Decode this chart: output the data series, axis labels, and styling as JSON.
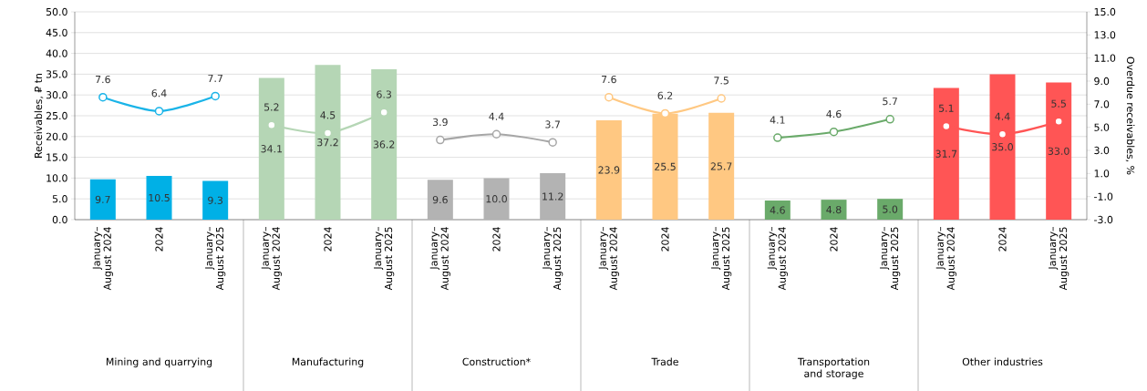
{
  "chart_data": {
    "type": "bar",
    "ylabel": "Receivables, ₽ tn",
    "y2label": "Overdue receivables, %",
    "categories": [
      "January–August 2024",
      "2024",
      "January–August 2025",
      "January–August 2024",
      "2024",
      "January–August 2025",
      "January–August 2024",
      "2024",
      "January–August 2025",
      "January–August 2024",
      "2024",
      "January–August 2025",
      "January–August 2024",
      "2024",
      "January–August 2025",
      "January–August 2024",
      "2024",
      "January–August 2025"
    ],
    "annotations": [
      "Mining and quarrying",
      "Manufacturing",
      "Construction*",
      "Trade",
      "Transportation and storage",
      "Other industries"
    ],
    "series": [
      {
        "values": [
          9.7,
          10.5,
          9.3,
          34.1,
          37.2,
          36.2,
          9.6,
          10.0,
          11.2,
          23.9,
          25.5,
          25.7,
          4.6,
          4.8,
          5.0,
          31.7,
          35.0,
          33.0
        ],
        "value_labels": [
          "9.7",
          "10.5",
          "9.3",
          "34.1",
          "37.2",
          "36.2",
          "9.6",
          "10.0",
          "11.2",
          "23.9",
          "25.5",
          "25.7",
          "4.6",
          "4.8",
          "5.0",
          "31.7",
          "35.0",
          "33.0"
        ],
        "colors": [
          "#00b0e6",
          "#00b0e6",
          "#00b0e6",
          "#b5d6b5",
          "#b5d6b5",
          "#b5d6b5",
          "#b3b3b3",
          "#b3b3b3",
          "#b3b3b3",
          "#ffc882",
          "#ffc882",
          "#ffc882",
          "#6aaa6a",
          "#6aaa6a",
          "#6aaa6a",
          "#ff5555",
          "#ff5555",
          "#ff5555"
        ]
      },
      {
        "type": "line",
        "axis": "y2",
        "color": "#1ab4e8",
        "values": [
          7.6,
          6.4,
          7.7,
          null,
          null,
          null,
          null,
          null,
          null,
          null,
          null,
          null,
          null,
          null,
          null,
          null,
          null,
          null
        ],
        "value_labels": [
          "7.6",
          "6.4",
          "7.7",
          null,
          null,
          null,
          null,
          null,
          null,
          null,
          null,
          null,
          null,
          null,
          null,
          null,
          null,
          null
        ]
      },
      {
        "type": "line",
        "axis": "y2",
        "color": "#b5d6b5",
        "values": [
          null,
          null,
          null,
          5.2,
          4.5,
          6.3,
          null,
          null,
          null,
          null,
          null,
          null,
          null,
          null,
          null,
          null,
          null,
          null
        ],
        "value_labels": [
          null,
          null,
          null,
          "5.2",
          "4.5",
          "6.3",
          null,
          null,
          null,
          null,
          null,
          null,
          null,
          null,
          null,
          null,
          null,
          null
        ]
      },
      {
        "type": "line",
        "axis": "y2",
        "color": "#a6a6a6",
        "values": [
          null,
          null,
          null,
          null,
          null,
          null,
          3.9,
          4.4,
          3.7,
          null,
          null,
          null,
          null,
          null,
          null,
          null,
          null,
          null
        ],
        "value_labels": [
          null,
          null,
          null,
          null,
          null,
          null,
          "3.9",
          "4.4",
          "3.7",
          null,
          null,
          null,
          null,
          null,
          null,
          null,
          null,
          null
        ]
      },
      {
        "type": "line",
        "axis": "y2",
        "color": "#ffc882",
        "values": [
          null,
          null,
          null,
          null,
          null,
          null,
          null,
          null,
          null,
          7.6,
          6.2,
          7.5,
          null,
          null,
          null,
          null,
          null,
          null
        ],
        "value_labels": [
          null,
          null,
          null,
          null,
          null,
          null,
          null,
          null,
          null,
          "7.6",
          "6.2",
          "7.5",
          null,
          null,
          null,
          null,
          null,
          null
        ]
      },
      {
        "type": "line",
        "axis": "y2",
        "color": "#6aaa6a",
        "values": [
          null,
          null,
          null,
          null,
          null,
          null,
          null,
          null,
          null,
          null,
          null,
          null,
          4.1,
          4.6,
          5.7,
          null,
          null,
          null
        ],
        "value_labels": [
          null,
          null,
          null,
          null,
          null,
          null,
          null,
          null,
          null,
          null,
          null,
          null,
          "4.1",
          "4.6",
          "5.7",
          null,
          null,
          null
        ]
      },
      {
        "type": "line",
        "axis": "y2",
        "color": "#ff5555",
        "values": [
          null,
          null,
          null,
          null,
          null,
          null,
          null,
          null,
          null,
          null,
          null,
          null,
          null,
          null,
          null,
          5.1,
          4.4,
          5.5
        ],
        "value_labels": [
          null,
          null,
          null,
          null,
          null,
          null,
          null,
          null,
          null,
          null,
          null,
          null,
          null,
          null,
          null,
          "5.1",
          "4.4",
          "5.5"
        ]
      }
    ],
    "ylim": [
      0,
      50
    ],
    "yticks": [
      {
        "value": 0,
        "label": "0.0"
      },
      {
        "value": 5,
        "label": "5.0"
      },
      {
        "value": 10,
        "label": "10.0"
      },
      {
        "value": 15,
        "label": "15.0"
      },
      {
        "value": 20,
        "label": "20.0"
      },
      {
        "value": 25,
        "label": "25.0"
      },
      {
        "value": 30,
        "label": "30.0"
      },
      {
        "value": 35,
        "label": "35.0"
      },
      {
        "value": 40,
        "label": "40.0"
      },
      {
        "value": 45,
        "label": "45.0"
      },
      {
        "value": 50,
        "label": "50.0"
      }
    ],
    "y2lim": [
      -3,
      15
    ],
    "y2ticks": [
      {
        "value": -3,
        "label": "-3.0"
      },
      {
        "value": -1,
        "label": "-1.0"
      },
      {
        "value": 1,
        "label": "1.0"
      },
      {
        "value": 3,
        "label": "3.0"
      },
      {
        "value": 5,
        "label": "5.0"
      },
      {
        "value": 7,
        "label": "7.0"
      },
      {
        "value": 9,
        "label": "9.0"
      },
      {
        "value": 11,
        "label": "11.0"
      },
      {
        "value": 13,
        "label": "13.0"
      },
      {
        "value": 15,
        "label": "15.0"
      }
    ],
    "grid": "y",
    "marker": "circle",
    "line_style": "solid"
  }
}
